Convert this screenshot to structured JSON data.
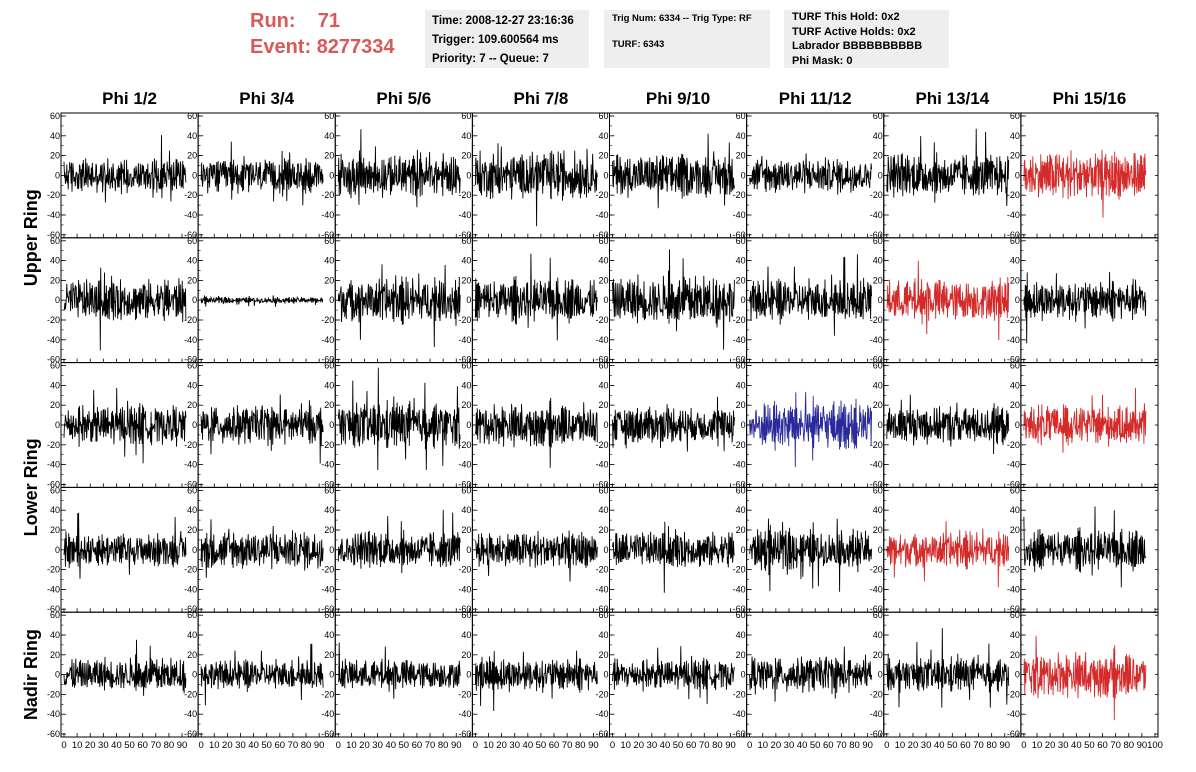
{
  "header": {
    "run_label": "Run:",
    "run_value": "71",
    "event_label": "Event:",
    "event_value": "8277334",
    "time": "Time: 2008-12-27 23:16:36",
    "trigger": "Trigger: 109.600564 ms",
    "priority": "Priority: 7 -- Queue: 7",
    "trig_num": "Trig Num: 6334 -- Trig Type: RF",
    "turf": "TURF: 6343",
    "turf_this_hold": "TURF This Hold: 0x2",
    "turf_active_holds": "TURF Active Holds: 0x2",
    "labrador": "Labrador BBBBBBBBBB",
    "phi_mask": "Phi Mask: 0"
  },
  "colors": {
    "run_text": "#d75a5a",
    "normal_trace": "#000000",
    "red_trace": "#d42a2a",
    "blue_trace": "#2a2a9c",
    "info_bg": "#eeeeee"
  },
  "chart_data": {
    "type": "line",
    "columns": [
      "Phi 1/2",
      "Phi 3/4",
      "Phi 5/6",
      "Phi 7/8",
      "Phi 9/10",
      "Phi 11/12",
      "Phi 13/14",
      "Phi 15/16"
    ],
    "rows": [
      "Upper Ring",
      "Lower Ring",
      "Nadir Ring"
    ],
    "ylim": [
      -60,
      60
    ],
    "yticks": [
      -60,
      -40,
      -20,
      0,
      20,
      40,
      60
    ],
    "xlim": [
      0,
      100
    ],
    "xticks": [
      0,
      10,
      20,
      30,
      40,
      50,
      60,
      70,
      80,
      90,
      100
    ],
    "panel_rows": 5,
    "trace_x_range": [
      0,
      93
    ],
    "samples_per_trace": 260,
    "trace_amplitudes": [
      [
        12,
        12,
        14,
        16,
        14,
        12,
        14,
        16
      ],
      [
        14,
        2,
        15,
        14,
        16,
        14,
        14,
        13
      ],
      [
        13,
        13,
        15,
        14,
        12,
        16,
        13,
        13
      ],
      [
        11,
        13,
        12,
        12,
        12,
        13,
        12,
        13
      ],
      [
        11,
        10,
        10,
        11,
        10,
        12,
        11,
        15
      ]
    ],
    "trace_colors": [
      [
        "normal",
        "normal",
        "normal",
        "normal",
        "normal",
        "normal",
        "normal",
        "red"
      ],
      [
        "normal",
        "normal",
        "normal",
        "normal",
        "normal",
        "normal",
        "red",
        "normal"
      ],
      [
        "normal",
        "normal",
        "normal",
        "normal",
        "normal",
        "blue",
        "normal",
        "red"
      ],
      [
        "normal",
        "normal",
        "normal",
        "normal",
        "normal",
        "normal",
        "red",
        "normal"
      ],
      [
        "normal",
        "normal",
        "normal",
        "normal",
        "normal",
        "normal",
        "normal",
        "red"
      ]
    ]
  }
}
